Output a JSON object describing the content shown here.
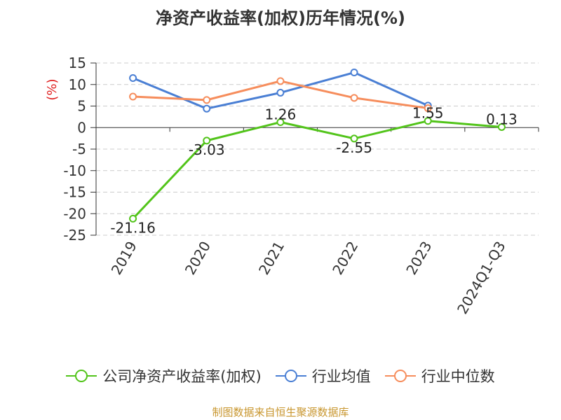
{
  "page": {
    "source_note": "制图数据来自恒生聚源数据库"
  },
  "colors": {
    "company": "#52c41a",
    "industry_avg": "#4a7fd4",
    "industry_median": "#f68d5c",
    "axis": "#333333",
    "grid": "#cccccc",
    "unit_label": "#e02020",
    "source": "#c8962e"
  },
  "chart_data": {
    "type": "line",
    "title": "净资产收益率(加权)历年情况(%)",
    "ylabel": "(%)",
    "xlabel": "",
    "categories": [
      "2019",
      "2020",
      "2021",
      "2022",
      "2023",
      "2024Q1-Q3"
    ],
    "ylim": [
      -25,
      15
    ],
    "yticks": [
      15,
      10,
      5,
      0,
      -5,
      -10,
      -15,
      -20,
      -25
    ],
    "grid": true,
    "legend_position": "bottom",
    "series": [
      {
        "name": "公司净资产收益率(加权)",
        "values": [
          -21.16,
          -3.03,
          1.26,
          -2.55,
          1.55,
          0.13
        ],
        "labels": [
          "-21.16",
          "-3.03",
          "1.26",
          "-2.55",
          "1.55",
          "0.13"
        ],
        "color": "#52c41a"
      },
      {
        "name": "行业均值",
        "values": [
          11.5,
          4.4,
          8.1,
          12.8,
          5.1,
          null
        ],
        "color": "#4a7fd4"
      },
      {
        "name": "行业中位数",
        "values": [
          7.2,
          6.4,
          10.8,
          6.9,
          4.5,
          null
        ],
        "color": "#f68d5c"
      }
    ]
  }
}
